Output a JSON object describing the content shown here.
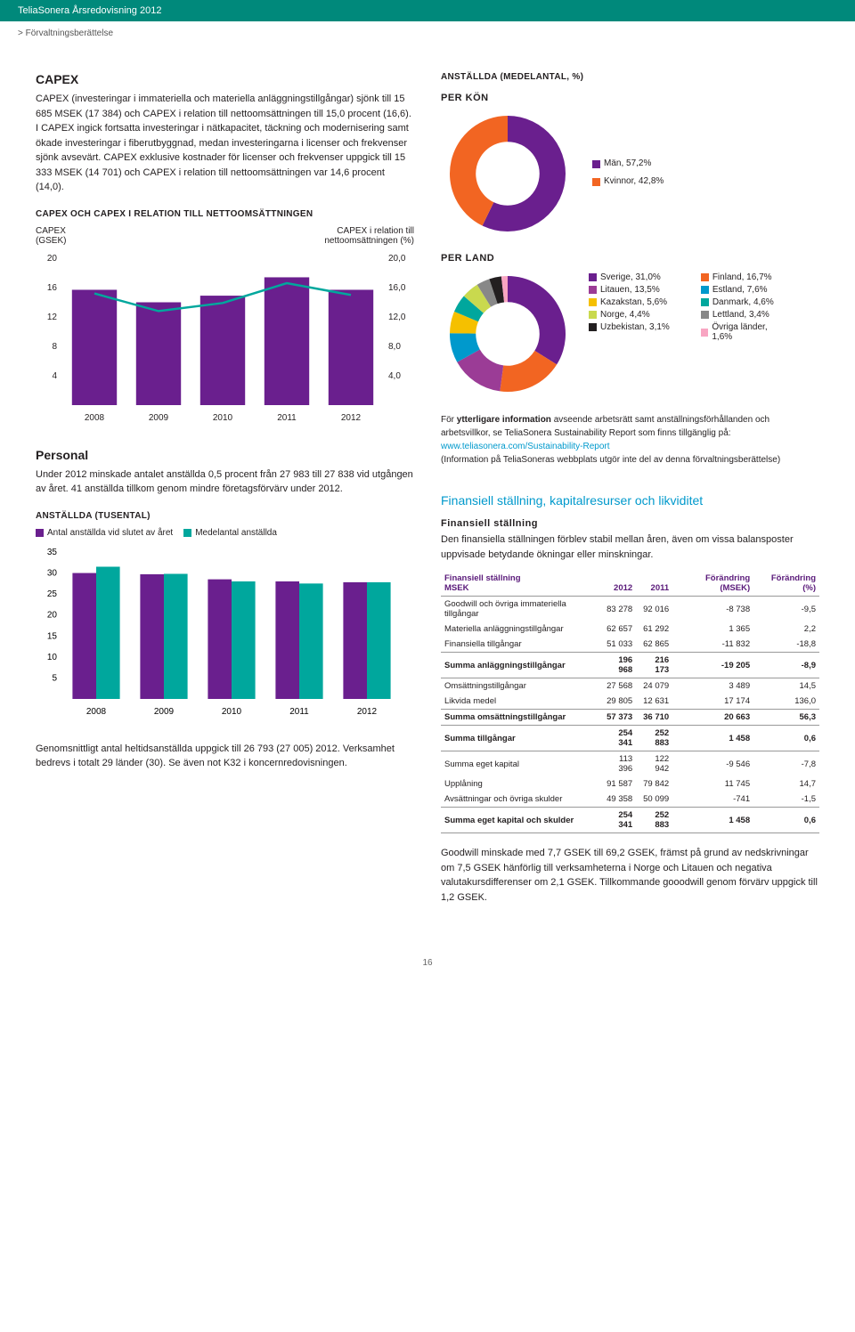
{
  "header": {
    "title": "TeliaSonera Årsredovisning 2012"
  },
  "breadcrumb": {
    "text": "> Förvaltningsberättelse"
  },
  "capex": {
    "title": "CAPEX",
    "body": "CAPEX (investeringar i immateriella och materiella anläggningstillgångar) sjönk till 15 685 MSEK (17 384) och CAPEX i relation till nettoomsättningen till 15,0 procent (16,6). I CAPEX ingick fortsatta investeringar i nätkapacitet, täckning och modernisering samt ökade investeringar i fiberutbyggnad, medan investeringarna i licenser och frekvenser sjönk avsevärt. CAPEX exklusive kostnader för licenser och frekvenser uppgick till 15 333 MSEK (14 701) och CAPEX i relation till nettoomsättningen var 14,6 procent (14,0)."
  },
  "capex_chart": {
    "heading": "CAPEX OCH CAPEX I RELATION TILL NETTOOMSÄTTNINGEN",
    "left_label": "CAPEX\n(GSEK)",
    "right_label": "CAPEX i relation till\nnettoomsättningen (%)",
    "type": "bar+line",
    "years": [
      "2008",
      "2009",
      "2010",
      "2011",
      "2012"
    ],
    "bars_gsek": [
      15.7,
      14.0,
      14.9,
      17.4,
      15.7
    ],
    "line_pct": [
      15.2,
      12.8,
      13.9,
      16.6,
      15.0
    ],
    "left_ticks": [
      4,
      8,
      12,
      16,
      20
    ],
    "right_ticks": [
      "4,0",
      "8,0",
      "12,0",
      "16,0",
      "20,0"
    ],
    "bar_color": "#6a1f8e",
    "line_color": "#00a79d",
    "axis_color": "#d0d0d0",
    "text_color": "#231f20"
  },
  "personal": {
    "title": "Personal",
    "body": "Under 2012 minskade antalet anställda 0,5 procent från 27 983 till 27 838 vid utgången av året. 41 anställda tillkom genom mindre företagsförvärv under 2012."
  },
  "employee_chart": {
    "heading": "ANSTÄLLDA (TUSENTAL)",
    "legend1": "Antal anställda vid slutet av året",
    "legend2": "Medelantal anställda",
    "type": "grouped-bar",
    "years": [
      "2008",
      "2009",
      "2010",
      "2011",
      "2012"
    ],
    "series1": [
      30.0,
      29.7,
      28.5,
      28.0,
      27.8
    ],
    "series2": [
      31.5,
      29.8,
      28.0,
      27.5,
      27.8
    ],
    "color1": "#6a1f8e",
    "color2": "#00a79d",
    "ticks": [
      5,
      10,
      15,
      20,
      25,
      30,
      35
    ],
    "axis_color": "#d0d0d0"
  },
  "personal_footer": "Genomsnittligt antal heltidsanställda uppgick till 26 793 (27 005) 2012. Verksamhet bedrevs i totalt 29 länder (30). Se även not K32 i koncernredovisningen.",
  "employees_pct": {
    "heading": "ANSTÄLLDA (MEDELANTAL, %)",
    "per_kon": "PER KÖN",
    "per_land": "PER LAND",
    "gender": {
      "type": "donut",
      "items": [
        {
          "label": "Män, 57,2%",
          "value": 57.2,
          "color": "#6a1f8e"
        },
        {
          "label": "Kvinnor, 42,8%",
          "value": 42.8,
          "color": "#f26522"
        }
      ],
      "inner_radius": 0.55
    },
    "country": {
      "type": "donut",
      "items": [
        {
          "label": "Sverige, 31,0%",
          "value": 31.0,
          "color": "#6a1f8e"
        },
        {
          "label": "Finland, 16,7%",
          "value": 16.7,
          "color": "#f26522"
        },
        {
          "label": "Litauen, 13,5%",
          "value": 13.5,
          "color": "#9b3c96"
        },
        {
          "label": "Estland, 7,6%",
          "value": 7.6,
          "color": "#0099cc"
        },
        {
          "label": "Kazakstan, 5,6%",
          "value": 5.6,
          "color": "#f5c000"
        },
        {
          "label": "Danmark, 4,6%",
          "value": 4.6,
          "color": "#00a79d"
        },
        {
          "label": "Norge, 4,4%",
          "value": 4.4,
          "color": "#c9d94e"
        },
        {
          "label": "Lettland, 3,4%",
          "value": 3.4,
          "color": "#888888"
        },
        {
          "label": "Uzbekistan, 3,1%",
          "value": 3.1,
          "color": "#231f20"
        },
        {
          "label": "Övriga länder, 1,6%",
          "value": 1.6,
          "color": "#f8a5c2"
        }
      ],
      "inner_radius": 0.55
    }
  },
  "info_box": {
    "prefix": "För ",
    "bold": "ytterligare information",
    "rest": " avseende arbetsrätt samt anställningsförhållanden och arbetsvillkor, se TeliaSonera Sustainability Report som finns tillgänglig på:",
    "link": "www.teliasonera.com/Sustainability-Report",
    "after": "(Information på TeliaSoneras webbplats utgör inte del av denna förvaltningsberättelse)"
  },
  "finance": {
    "title": "Finansiell ställning, kapitalresurser och likviditet",
    "subtitle": "Finansiell ställning",
    "intro": "Den finansiella ställningen förblev stabil mellan åren, även om vissa balansposter uppvisade betydande ökningar eller minskningar."
  },
  "fin_table": {
    "head": [
      "Finansiell ställning\nMSEK",
      "2012",
      "2011",
      "Förändring (MSEK)",
      "Förändring (%)"
    ],
    "rows": [
      {
        "label": "Goodwill och övriga immateriella tillgångar",
        "c": [
          "83 278",
          "92 016",
          "-8 738",
          "-9,5"
        ],
        "sum": false
      },
      {
        "label": "Materiella anläggningstillgångar",
        "c": [
          "62 657",
          "61 292",
          "1 365",
          "2,2"
        ],
        "sum": false
      },
      {
        "label": "Finansiella tillgångar",
        "c": [
          "51 033",
          "62 865",
          "-11 832",
          "-18,8"
        ],
        "sum": false
      },
      {
        "label": "Summa anläggningstillgångar",
        "c": [
          "196 968",
          "216 173",
          "-19 205",
          "-8,9"
        ],
        "sum": true
      },
      {
        "label": "Omsättningstillgångar",
        "c": [
          "27 568",
          "24 079",
          "3 489",
          "14,5"
        ],
        "sum": false
      },
      {
        "label": "Likvida medel",
        "c": [
          "29 805",
          "12 631",
          "17 174",
          "136,0"
        ],
        "sum": false
      },
      {
        "label": "Summa omsättningstillgångar",
        "c": [
          "57 373",
          "36 710",
          "20 663",
          "56,3"
        ],
        "sum": true
      },
      {
        "label": "Summa tillgångar",
        "c": [
          "254 341",
          "252 883",
          "1 458",
          "0,6"
        ],
        "sum": true
      },
      {
        "label": "Summa eget kapital",
        "c": [
          "113 396",
          "122 942",
          "-9 546",
          "-7,8"
        ],
        "sum": false
      },
      {
        "label": "Upplåning",
        "c": [
          "91 587",
          "79 842",
          "11 745",
          "14,7"
        ],
        "sum": false
      },
      {
        "label": "Avsättningar och övriga skulder",
        "c": [
          "49 358",
          "50 099",
          "-741",
          "-1,5"
        ],
        "sum": false
      },
      {
        "label": "Summa eget kapital och skulder",
        "c": [
          "254 341",
          "252 883",
          "1 458",
          "0,6"
        ],
        "sum": true
      }
    ]
  },
  "finance_footer": "Goodwill minskade med 7,7 GSEK till 69,2 GSEK, främst på grund av nedskrivningar om 7,5 GSEK hänförlig till verksamheterna i Norge och Litauen och negativa valutakursdifferenser om 2,1 GSEK. Tillkommande gooodwill genom förvärv uppgick till 1,2 GSEK.",
  "page_number": "16"
}
